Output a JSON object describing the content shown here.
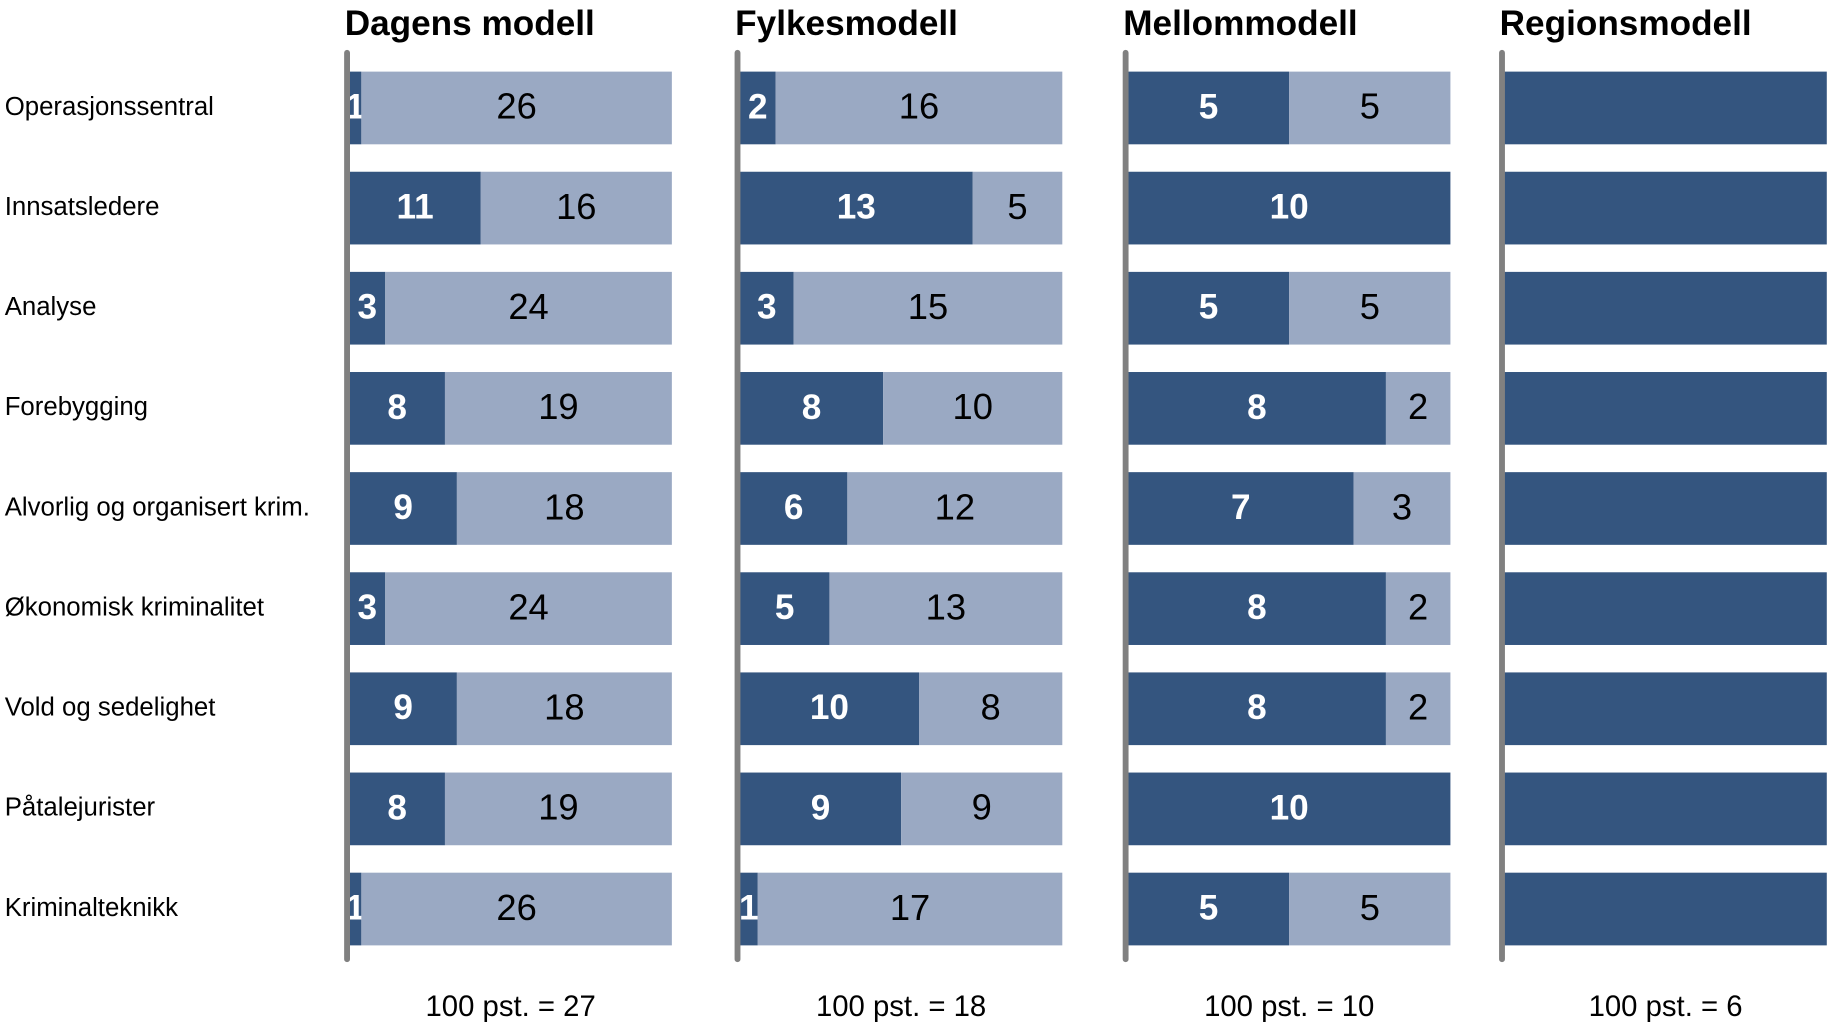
{
  "chart_data": [
    {
      "type": "bar",
      "orientation": "horizontal",
      "stacked": true,
      "title": "Dagens modell",
      "categories": [
        "Operasjonssentral",
        "Innsatsledere",
        "Analyse",
        "Forebygging",
        "Alvorlig og organisert krim.",
        "Økonomisk kriminalitet",
        "Vold og sedelighet",
        "Påtalejurister",
        "Kriminalteknikk"
      ],
      "xlim": [
        0,
        27
      ],
      "show_labels": true,
      "total_label": "100 pst. = 27",
      "series": [
        {
          "color": "#34557f",
          "values": [
            1,
            11,
            3,
            8,
            9,
            3,
            9,
            8,
            1
          ]
        },
        {
          "color": "#9aa9c3",
          "values": [
            26,
            16,
            24,
            19,
            18,
            24,
            18,
            19,
            26
          ]
        }
      ]
    },
    {
      "type": "bar",
      "orientation": "horizontal",
      "stacked": true,
      "title": "Fylkesmodell",
      "xlim": [
        0,
        18
      ],
      "show_labels": true,
      "total_label": "100 pst. = 18",
      "series": [
        {
          "color": "#34557f",
          "values": [
            2,
            13,
            3,
            8,
            6,
            5,
            10,
            9,
            1
          ]
        },
        {
          "color": "#9aa9c3",
          "values": [
            16,
            5,
            15,
            10,
            12,
            13,
            8,
            9,
            17
          ]
        }
      ]
    },
    {
      "type": "bar",
      "orientation": "horizontal",
      "stacked": true,
      "title": "Mellommodell",
      "xlim": [
        0,
        10
      ],
      "show_labels": true,
      "total_label": "100 pst. = 10",
      "series": [
        {
          "color": "#34557f",
          "values": [
            5,
            10,
            5,
            8,
            7,
            8,
            8,
            10,
            5
          ]
        },
        {
          "color": "#9aa9c3",
          "values": [
            5,
            0,
            5,
            2,
            3,
            2,
            2,
            0,
            5
          ]
        }
      ]
    },
    {
      "type": "bar",
      "orientation": "horizontal",
      "stacked": true,
      "title": "Regionsmodell",
      "xlim": [
        0,
        6
      ],
      "show_labels": false,
      "total_label": "100 pst.  = 6",
      "series": [
        {
          "color": "#34557f",
          "values": [
            6,
            6,
            6,
            6,
            6,
            6,
            6,
            6,
            6
          ]
        },
        {
          "color": "#9aa9c3",
          "values": [
            0,
            0,
            0,
            0,
            0,
            0,
            0,
            0,
            0
          ]
        }
      ]
    }
  ]
}
